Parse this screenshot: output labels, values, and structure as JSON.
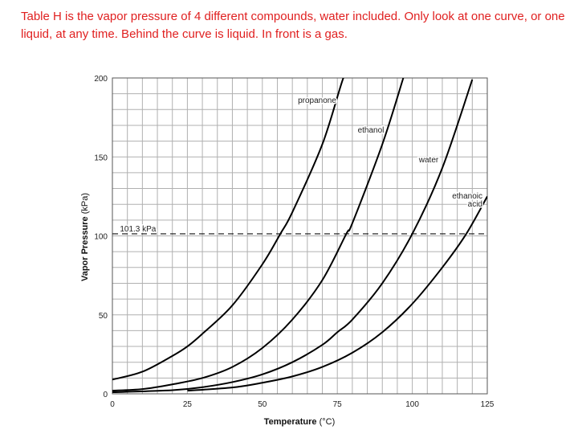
{
  "caption": "Table H is the vapor pressure of 4 different compounds, water included.  Only look at one curve, or one liquid, at any time.  Behind the curve is liquid.  In front is a gas.",
  "chart_data": {
    "type": "line",
    "xlabel_bold": "Temperature",
    "xlabel_unit": " (°C)",
    "ylabel_bold": "Vapor Pressure",
    "ylabel_unit": " (kPa)",
    "xlim": [
      0,
      125
    ],
    "ylim": [
      0,
      200
    ],
    "x_ticks": [
      "0",
      "25",
      "50",
      "75",
      "100",
      "125"
    ],
    "y_ticks": [
      "0",
      "50",
      "100",
      "150",
      "200"
    ],
    "grid": true,
    "reference_line": {
      "y": 101.3,
      "label": "101.3 kPa",
      "style": "dashed"
    },
    "series": [
      {
        "name": "propanone",
        "label_lines": [
          "propanone"
        ],
        "x": [
          0,
          10,
          20,
          25,
          30,
          40,
          50,
          56,
          60,
          70,
          77,
          80
        ],
        "y": [
          9,
          14,
          24,
          30,
          38,
          56,
          82,
          101.3,
          115,
          158,
          200,
          210
        ]
      },
      {
        "name": "ethanol",
        "label_lines": [
          "ethanol"
        ],
        "x": [
          0,
          10,
          20,
          30,
          40,
          50,
          60,
          70,
          78,
          80,
          90,
          97
        ],
        "y": [
          2,
          3,
          6,
          10,
          17,
          29,
          47,
          72,
          101.3,
          108,
          158,
          200
        ]
      },
      {
        "name": "water",
        "label_lines": [
          "water"
        ],
        "x": [
          0,
          20,
          30,
          40,
          50,
          60,
          70,
          75,
          80,
          90,
          100,
          110,
          120
        ],
        "y": [
          1,
          2.3,
          4.2,
          7.4,
          12.3,
          20,
          31,
          39,
          47,
          70,
          101.3,
          143,
          199
        ]
      },
      {
        "name": "ethanoic acid",
        "label_lines": [
          "ethanoic",
          "acid"
        ],
        "x": [
          25,
          40,
          50,
          60,
          70,
          80,
          90,
          100,
          110,
          118,
          125
        ],
        "y": [
          2,
          4,
          7,
          11,
          17,
          26,
          39,
          57,
          80,
          101.3,
          125
        ]
      }
    ]
  }
}
